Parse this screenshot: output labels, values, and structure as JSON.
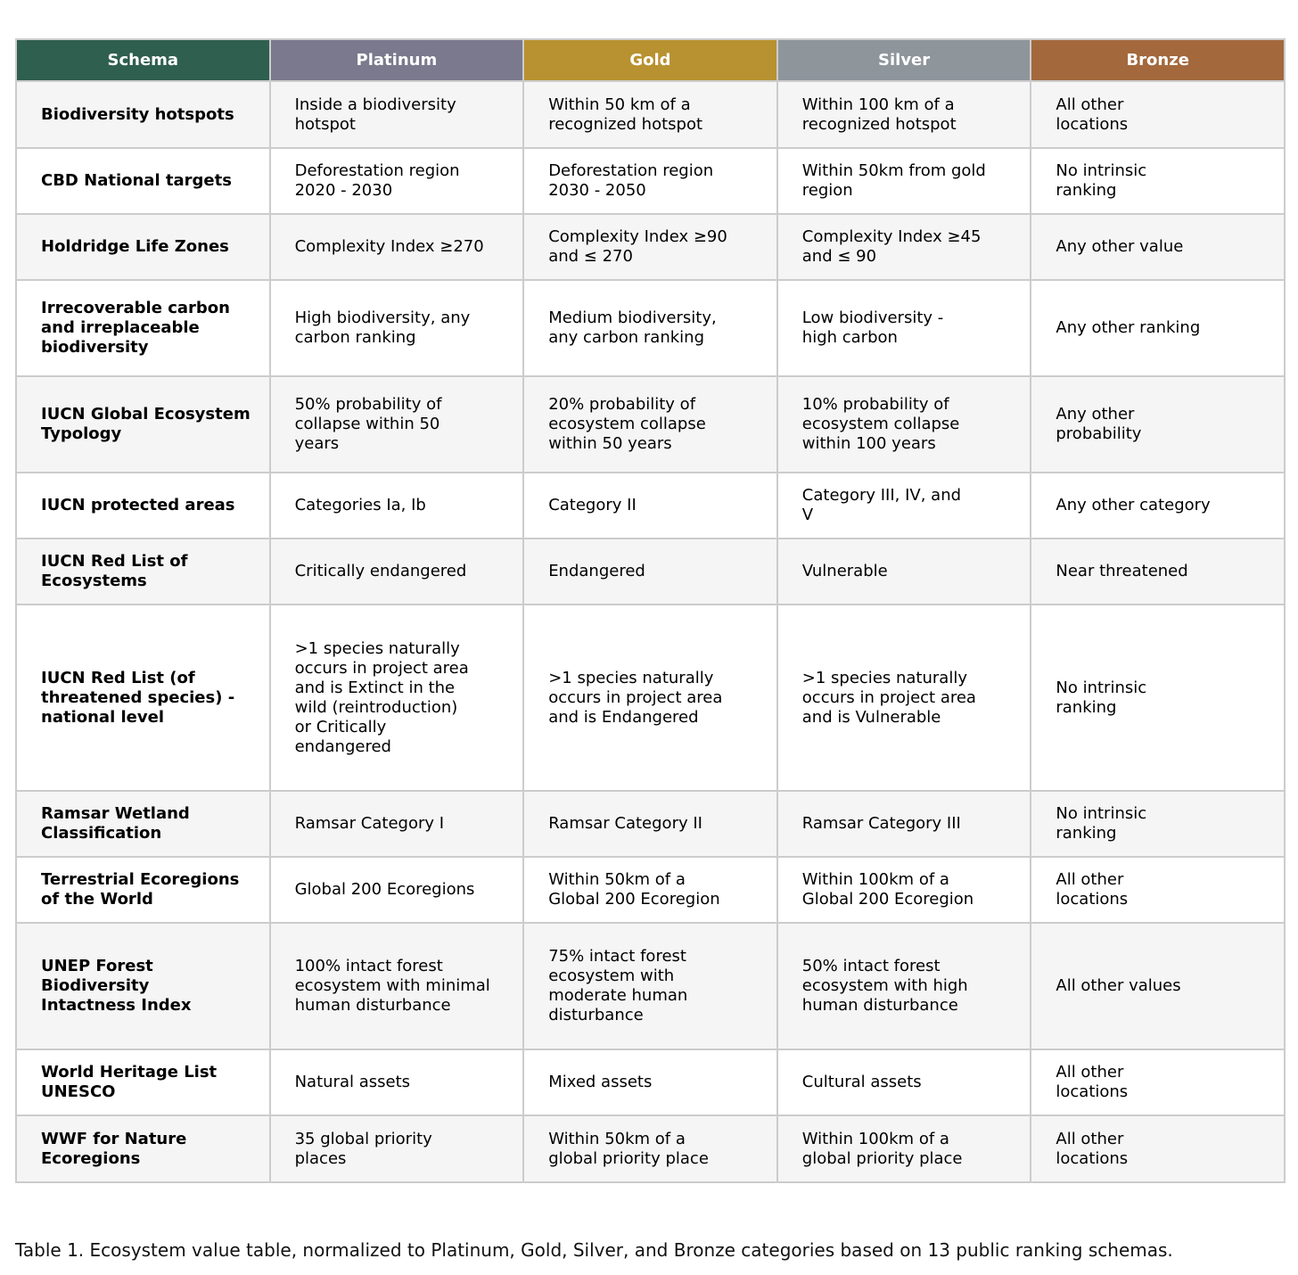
{
  "table": {
    "headers": [
      {
        "label": "Schema",
        "color": "#2f5f4f"
      },
      {
        "label": "Platinum",
        "color": "#7a798d"
      },
      {
        "label": "Gold",
        "color": "#b89230"
      },
      {
        "label": "Silver",
        "color": "#8e959b"
      },
      {
        "label": "Bronze",
        "color": "#a3693d"
      }
    ],
    "rows": [
      {
        "schema": "Biodiversity hotspots",
        "platinum": "Inside a biodiversity\nhotspot",
        "gold": "Within 50 km of a\nrecognized hotspot",
        "silver": "Within 100 km of a\nrecognized hotspot",
        "bronze": "All other\nlocations"
      },
      {
        "schema": "CBD National targets",
        "platinum": "Deforestation region\n2020 - 2030",
        "gold": "Deforestation region\n2030 - 2050",
        "silver": "Within 50km from gold\nregion",
        "bronze": "No intrinsic\nranking"
      },
      {
        "schema": "Holdridge Life Zones",
        "platinum": "Complexity Index ≥270",
        "gold": "Complexity Index ≥90\nand ≤ 270",
        "silver": "Complexity Index ≥45\nand ≤ 90",
        "bronze": "Any other value"
      },
      {
        "schema": "Irrecoverable carbon\nand irreplaceable\nbiodiversity",
        "platinum": "High biodiversity, any\ncarbon ranking",
        "gold": "Medium biodiversity,\nany carbon ranking",
        "silver": "Low biodiversity -\nhigh carbon",
        "bronze": "Any other ranking"
      },
      {
        "schema": "IUCN Global Ecosystem\nTypology",
        "platinum": "50% probability of\ncollapse within 50\nyears",
        "gold": "20% probability of\necosystem collapse\nwithin 50 years",
        "silver": "10% probability of\necosystem collapse\nwithin 100 years",
        "bronze": "Any other\nprobability"
      },
      {
        "schema": "IUCN protected areas",
        "platinum": "Categories Ia, Ib",
        "gold": "Category II",
        "silver": "Category III, IV, and\nV",
        "bronze": "Any other category"
      },
      {
        "schema": "IUCN Red List of\nEcosystems",
        "platinum": "Critically endangered",
        "gold": "Endangered",
        "silver": "Vulnerable",
        "bronze": "Near threatened"
      },
      {
        "schema": "IUCN Red List (of\nthreatened species) -\nnational level",
        "platinum": ">1 species naturally\noccurs in project area\nand is Extinct in the\nwild (reintroduction)\nor Critically\nendangered",
        "gold": ">1 species naturally\noccurs in project area\nand is Endangered",
        "silver": ">1 species naturally\noccurs in project area\nand is Vulnerable",
        "bronze": "No intrinsic\nranking"
      },
      {
        "schema": "Ramsar Wetland\nClassification",
        "platinum": "Ramsar Category I",
        "gold": "Ramsar Category II",
        "silver": "Ramsar Category III",
        "bronze": "No intrinsic\nranking"
      },
      {
        "schema": "Terrestrial Ecoregions\nof the World",
        "platinum": "Global 200 Ecoregions",
        "gold": "Within 50km of a\nGlobal 200 Ecoregion",
        "silver": "Within 100km of a\nGlobal 200 Ecoregion",
        "bronze": "All other\nlocations"
      },
      {
        "schema": "UNEP Forest\nBiodiversity\nIntactness Index",
        "platinum": "100% intact forest\necosystem with minimal\nhuman disturbance",
        "gold": "75% intact forest\necosystem with\nmoderate human\ndisturbance",
        "silver": "50% intact forest\necosystem with high\nhuman disturbance",
        "bronze": "All other values"
      },
      {
        "schema": "World Heritage List\nUNESCO",
        "platinum": "Natural assets",
        "gold": "Mixed assets",
        "silver": "Cultural assets",
        "bronze": "All other\nlocations"
      },
      {
        "schema": "WWF for Nature\nEcoregions",
        "platinum": "35 global priority\nplaces",
        "gold": "Within 50km of a\nglobal priority place",
        "silver": "Within 100km of a\nglobal priority place",
        "bronze": "All other\nlocations"
      }
    ]
  },
  "caption": "Table 1. Ecosystem value table, normalized to Platinum, Gold, Silver, and Bronze categories based on 13 public ranking schemas."
}
